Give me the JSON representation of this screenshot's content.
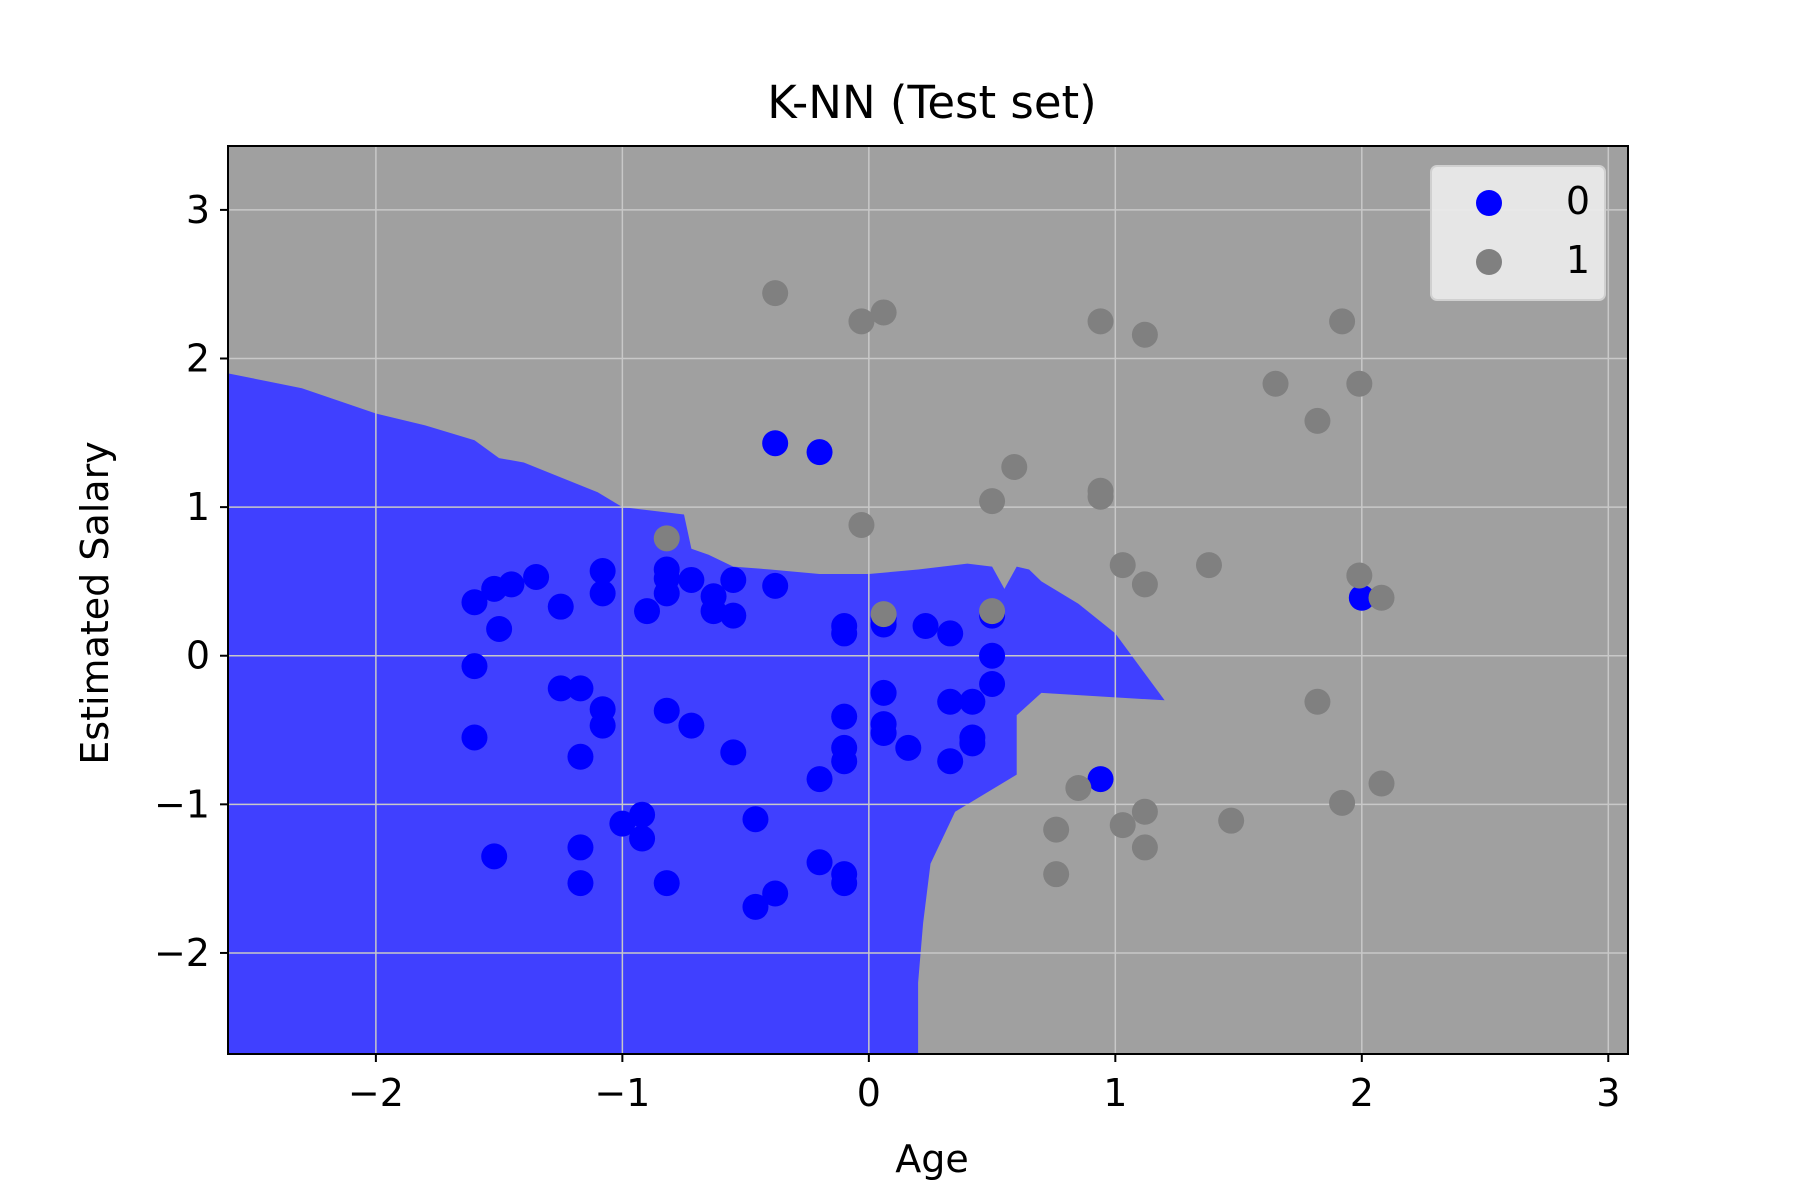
{
  "chart_data": {
    "type": "scatter",
    "title": "K-NN (Test set)",
    "xlabel": "Age",
    "ylabel": "Estimated Salary",
    "xlim": [
      -2.6,
      3.08
    ],
    "ylim": [
      -2.68,
      3.43
    ],
    "xticks": [
      -2,
      -1,
      0,
      1,
      2,
      3
    ],
    "yticks": [
      -2,
      -1,
      0,
      1,
      2,
      3
    ],
    "xtick_labels": [
      "−2",
      "−1",
      "0",
      "1",
      "2",
      "3"
    ],
    "ytick_labels": [
      "−2",
      "−1",
      "0",
      "1",
      "2",
      "3"
    ],
    "grid": true,
    "legend_position": "top-right",
    "colors": {
      "class_0_region": "#4040ff",
      "class_1_region": "#a0a0a0",
      "class_0_points": "#0000ff",
      "class_1_points": "#808080",
      "grid": "#c8c8c8"
    },
    "decision_boundary": [
      [
        -2.6,
        1.9
      ],
      [
        -2.3,
        1.8
      ],
      [
        -2.0,
        1.63
      ],
      [
        -1.8,
        1.55
      ],
      [
        -1.6,
        1.45
      ],
      [
        -1.5,
        1.33
      ],
      [
        -1.4,
        1.3
      ],
      [
        -1.25,
        1.2
      ],
      [
        -1.1,
        1.1
      ],
      [
        -1.0,
        1.0
      ],
      [
        -0.75,
        0.95
      ],
      [
        -0.72,
        0.72
      ],
      [
        -0.65,
        0.68
      ],
      [
        -0.55,
        0.6
      ],
      [
        -0.4,
        0.58
      ],
      [
        -0.2,
        0.55
      ],
      [
        0.0,
        0.55
      ],
      [
        0.2,
        0.58
      ],
      [
        0.4,
        0.62
      ],
      [
        0.5,
        0.6
      ],
      [
        0.55,
        0.45
      ],
      [
        0.6,
        0.6
      ],
      [
        0.65,
        0.58
      ],
      [
        0.7,
        0.5
      ],
      [
        0.85,
        0.35
      ],
      [
        1.0,
        0.15
      ],
      [
        1.2,
        -0.3
      ],
      [
        0.7,
        -0.25
      ],
      [
        0.6,
        -0.4
      ],
      [
        0.6,
        -0.8
      ],
      [
        0.35,
        -1.05
      ],
      [
        0.25,
        -1.4
      ],
      [
        0.22,
        -1.8
      ],
      [
        0.2,
        -2.2
      ],
      [
        0.2,
        -2.68
      ]
    ],
    "series": [
      {
        "name": "0",
        "points": [
          [
            -1.6,
            0.36
          ],
          [
            -1.52,
            0.45
          ],
          [
            -1.5,
            0.18
          ],
          [
            -1.45,
            0.48
          ],
          [
            -1.35,
            0.53
          ],
          [
            -1.25,
            0.33
          ],
          [
            -1.08,
            0.57
          ],
          [
            -1.08,
            0.42
          ],
          [
            -0.9,
            0.3
          ],
          [
            -0.82,
            0.58
          ],
          [
            -0.82,
            0.52
          ],
          [
            -0.82,
            0.42
          ],
          [
            -0.72,
            0.51
          ],
          [
            -0.63,
            0.4
          ],
          [
            -0.63,
            0.3
          ],
          [
            -0.55,
            0.51
          ],
          [
            -0.55,
            0.27
          ],
          [
            -0.38,
            0.47
          ],
          [
            -0.38,
            1.43
          ],
          [
            -0.2,
            1.37
          ],
          [
            -0.1,
            0.2
          ],
          [
            -0.1,
            0.15
          ],
          [
            0.06,
            0.25
          ],
          [
            0.06,
            0.21
          ],
          [
            0.23,
            0.2
          ],
          [
            0.33,
            0.15
          ],
          [
            0.5,
            0.27
          ],
          [
            0.5,
            0.0
          ],
          [
            0.5,
            -0.19
          ],
          [
            -1.6,
            -0.07
          ],
          [
            -1.6,
            -0.55
          ],
          [
            -1.25,
            -0.22
          ],
          [
            -1.17,
            -0.22
          ],
          [
            -1.08,
            -0.36
          ],
          [
            -1.08,
            -0.47
          ],
          [
            -1.17,
            -0.68
          ],
          [
            -0.82,
            -0.37
          ],
          [
            -0.72,
            -0.47
          ],
          [
            -0.55,
            -0.65
          ],
          [
            -0.1,
            -0.41
          ],
          [
            -0.1,
            -0.62
          ],
          [
            -0.1,
            -0.71
          ],
          [
            -0.2,
            -0.83
          ],
          [
            0.06,
            -0.25
          ],
          [
            0.06,
            -0.46
          ],
          [
            0.06,
            -0.52
          ],
          [
            0.16,
            -0.62
          ],
          [
            0.33,
            -0.31
          ],
          [
            0.42,
            -0.31
          ],
          [
            0.42,
            -0.55
          ],
          [
            0.42,
            -0.59
          ],
          [
            0.33,
            -0.71
          ],
          [
            -1.52,
            -1.35
          ],
          [
            -1.17,
            -1.29
          ],
          [
            -1.17,
            -1.53
          ],
          [
            -1.0,
            -1.13
          ],
          [
            -0.92,
            -1.07
          ],
          [
            -0.92,
            -1.23
          ],
          [
            -0.82,
            -1.53
          ],
          [
            -0.46,
            -1.1
          ],
          [
            -0.46,
            -1.69
          ],
          [
            -0.38,
            -1.6
          ],
          [
            -0.2,
            -1.39
          ],
          [
            -0.1,
            -1.47
          ],
          [
            -0.1,
            -1.53
          ],
          [
            0.94,
            -0.83
          ],
          [
            2.0,
            0.39
          ]
        ]
      },
      {
        "name": "1",
        "points": [
          [
            -0.38,
            2.44
          ],
          [
            -0.03,
            2.25
          ],
          [
            0.06,
            2.31
          ],
          [
            0.94,
            2.25
          ],
          [
            1.12,
            2.16
          ],
          [
            1.92,
            2.25
          ],
          [
            1.65,
            1.83
          ],
          [
            1.99,
            1.83
          ],
          [
            1.82,
            1.58
          ],
          [
            0.59,
            1.27
          ],
          [
            0.5,
            1.04
          ],
          [
            0.94,
            1.11
          ],
          [
            0.94,
            1.07
          ],
          [
            -0.03,
            0.88
          ],
          [
            -0.82,
            0.79
          ],
          [
            1.03,
            0.61
          ],
          [
            1.12,
            0.48
          ],
          [
            1.38,
            0.61
          ],
          [
            1.99,
            0.54
          ],
          [
            2.08,
            0.39
          ],
          [
            0.06,
            0.28
          ],
          [
            0.5,
            0.3
          ],
          [
            1.82,
            -0.31
          ],
          [
            0.85,
            -0.89
          ],
          [
            0.76,
            -1.17
          ],
          [
            0.76,
            -1.47
          ],
          [
            1.03,
            -1.14
          ],
          [
            1.12,
            -1.05
          ],
          [
            1.12,
            -1.29
          ],
          [
            1.47,
            -1.11
          ],
          [
            1.92,
            -0.99
          ],
          [
            2.08,
            -0.86
          ]
        ]
      }
    ]
  }
}
